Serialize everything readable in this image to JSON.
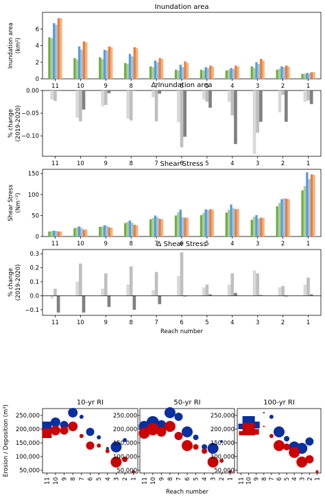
{
  "chart_data": [
    {
      "type": "bar",
      "title": "Inundation area",
      "ylabel_line1": "Inundation area",
      "ylabel_line2": "(km²)",
      "categories": [
        "11",
        "10",
        "9",
        "8",
        "7",
        "6",
        "5",
        "4",
        "3",
        "2",
        "1"
      ],
      "ylim": [
        0,
        8
      ],
      "yticks": [
        0,
        2,
        4,
        6
      ],
      "series": [
        {
          "color": "#70ad47",
          "values": [
            5.0,
            2.5,
            2.6,
            1.9,
            1.5,
            1.1,
            1.1,
            1.0,
            1.5,
            1.1,
            0.6
          ]
        },
        {
          "color": "#a9d08e",
          "values": [
            4.9,
            2.3,
            2.4,
            1.8,
            1.4,
            1.0,
            1.0,
            1.1,
            1.3,
            1.2,
            0.6
          ]
        },
        {
          "color": "#5b9bd5",
          "values": [
            6.7,
            3.9,
            3.5,
            3.0,
            2.2,
            1.7,
            1.4,
            1.3,
            2.0,
            1.5,
            0.7
          ]
        },
        {
          "color": "#9dc3e6",
          "values": [
            6.5,
            3.5,
            3.4,
            2.7,
            2.0,
            1.4,
            1.3,
            1.2,
            1.8,
            1.4,
            0.7
          ]
        },
        {
          "color": "#ed7d31",
          "values": [
            7.3,
            4.5,
            3.9,
            3.8,
            2.5,
            2.1,
            1.6,
            1.6,
            2.4,
            1.6,
            0.8
          ]
        },
        {
          "color": "#f4b183",
          "values": [
            7.3,
            4.4,
            3.8,
            3.7,
            2.4,
            1.9,
            1.5,
            1.5,
            2.2,
            1.5,
            0.8
          ]
        }
      ]
    },
    {
      "type": "bar",
      "title": "Δ Inundation area",
      "ylabel_line1": "% change",
      "ylabel_line2": "(2019-2020)",
      "categories": [
        "11",
        "10",
        "9",
        "8",
        "7",
        "6",
        "5",
        "4",
        "3",
        "2",
        "1"
      ],
      "ylim": [
        -0.145,
        0.0
      ],
      "yticks": [
        0.0,
        -0.05,
        -0.1
      ],
      "ytick_labels": [
        "0.00",
        "−0.05",
        "−0.10"
      ],
      "series": [
        {
          "color": "#d9d9d9",
          "values": [
            -0.02,
            -0.06,
            -0.035,
            -0.062,
            -0.015,
            -0.07,
            -0.02,
            -0.025,
            -0.14,
            -0.048,
            -0.025
          ]
        },
        {
          "color": "#bfbfbf",
          "values": [
            -0.023,
            -0.068,
            -0.032,
            -0.066,
            -0.068,
            -0.125,
            -0.025,
            -0.055,
            -0.093,
            -0.01,
            -0.022
          ]
        },
        {
          "color": "#808080",
          "values": [
            0.0,
            -0.042,
            -0.006,
            0.0,
            -0.007,
            -0.102,
            -0.038,
            -0.118,
            -0.069,
            -0.069,
            -0.03
          ]
        }
      ]
    },
    {
      "type": "bar",
      "title": "Shear Stress",
      "ylabel_line1": "Shear Stress",
      "ylabel_line2": "(Nm⁻²)",
      "categories": [
        "11",
        "10",
        "9",
        "8",
        "7",
        "6",
        "5",
        "4",
        "3",
        "2",
        "1"
      ],
      "ylim": [
        0,
        160
      ],
      "yticks": [
        0,
        50,
        100,
        150
      ],
      "series": [
        {
          "color": "#70ad47",
          "values": [
            12,
            20,
            23,
            32,
            41,
            50,
            51,
            57,
            40,
            72,
            110
          ]
        },
        {
          "color": "#a9d08e",
          "values": [
            13,
            22,
            24,
            35,
            44,
            58,
            56,
            64,
            47,
            80,
            120
          ]
        },
        {
          "color": "#5b9bd5",
          "values": [
            14,
            24,
            27,
            38,
            50,
            64,
            65,
            76,
            51,
            89,
            153
          ]
        },
        {
          "color": "#9dc3e6",
          "values": [
            13,
            20,
            25,
            33,
            46,
            46,
            63,
            67,
            43,
            91,
            137
          ]
        },
        {
          "color": "#ed7d31",
          "values": [
            12,
            16,
            22,
            28,
            42,
            45,
            65,
            65,
            45,
            90,
            148
          ]
        },
        {
          "color": "#f4b183",
          "values": [
            12,
            17,
            21,
            27,
            41,
            45,
            64,
            66,
            44,
            89,
            147
          ]
        }
      ]
    },
    {
      "type": "bar",
      "title": "Δ Shear Stress",
      "ylabel_line1": "% change",
      "ylabel_line2": "(2019-2020)",
      "xlabel": "Reach number",
      "categories": [
        "11",
        "10",
        "9",
        "8",
        "7",
        "6",
        "5",
        "4",
        "3",
        "2",
        "1"
      ],
      "ylim": [
        -0.14,
        0.33
      ],
      "yticks": [
        0.3,
        0.2,
        0.1,
        0.0,
        -0.1
      ],
      "ytick_labels": [
        "0.3",
        "0.2",
        "0.1",
        "0.0",
        "−0.1"
      ],
      "series": [
        {
          "color": "#d9d9d9",
          "values": [
            -0.02,
            0.1,
            0.05,
            0.08,
            0.04,
            0.14,
            0.06,
            0.08,
            0.18,
            0.06,
            0.08
          ]
        },
        {
          "color": "#bfbfbf",
          "values": [
            0.05,
            0.23,
            0.16,
            0.21,
            0.17,
            0.31,
            0.08,
            0.16,
            0.16,
            0.07,
            0.13
          ]
        },
        {
          "color": "#808080",
          "values": [
            -0.12,
            -0.12,
            -0.08,
            -0.1,
            -0.06,
            -0.005,
            0.01,
            0.02,
            0.005,
            -0.005,
            0.01
          ]
        }
      ]
    },
    {
      "type": "scatter",
      "title": "10-yr RI",
      "ylabel": "Erosion / Deposition (m³)",
      "categories": [
        "11",
        "10",
        "9",
        "8",
        "7",
        "6",
        "5",
        "4",
        "3",
        "2",
        "1"
      ],
      "ylim": [
        40000,
        275000
      ],
      "yticks": [
        50000,
        100000,
        150000,
        200000,
        250000
      ],
      "ytick_labels": [
        "50,000",
        "100,000",
        "150,000",
        "200,000",
        "250,000"
      ],
      "series": [
        {
          "color": "#0a2fa0",
          "values": [
            210000,
            225000,
            215000,
            260000,
            245000,
            190000,
            170000,
            130000,
            135000,
            160000,
            45000
          ],
          "sizes": [
            7,
            7,
            6,
            7,
            3,
            6,
            3,
            2,
            8,
            3,
            1
          ],
          "markers": [
            "square",
            "circle",
            "circle",
            "circle",
            "circle",
            "circle",
            "circle",
            "circle",
            "circle",
            "circle",
            "circle"
          ]
        },
        {
          "color": "#cc0000",
          "values": [
            185000,
            195000,
            195000,
            210000,
            175000,
            140000,
            140000,
            120000,
            80000,
            90000,
            45000
          ],
          "sizes": [
            7,
            7,
            6,
            7,
            3,
            6,
            3,
            3,
            8,
            4,
            2
          ],
          "markers": [
            "square",
            "circle",
            "circle",
            "circle",
            "circle",
            "circle",
            "circle",
            "circle",
            "circle",
            "circle",
            "circle"
          ]
        }
      ]
    },
    {
      "type": "scatter",
      "title": "50-yr RI",
      "xlabel": "Reach number",
      "categories": [
        "11",
        "10",
        "9",
        "8",
        "7",
        "6",
        "5",
        "4",
        "3",
        "2",
        "1"
      ],
      "ylim": [
        40000,
        275000
      ],
      "yticks": [
        50000,
        100000,
        150000,
        200000,
        250000
      ],
      "ytick_labels": [
        "50,000",
        "100,000",
        "150,000",
        "200,000",
        "250,000"
      ],
      "series": [
        {
          "color": "#0a2fa0",
          "values": [
            210000,
            225000,
            215000,
            260000,
            245000,
            190000,
            170000,
            135000,
            130000,
            155000,
            45000
          ],
          "sizes": [
            8,
            9,
            7,
            8,
            6,
            8,
            4,
            4,
            8,
            2,
            1
          ],
          "markers": [
            "circle",
            "circle",
            "circle",
            "circle",
            "circle",
            "circle",
            "circle",
            "circle",
            "circle",
            "circle",
            "circle"
          ]
        },
        {
          "color": "#cc0000",
          "values": [
            185000,
            200000,
            190000,
            210000,
            175000,
            140000,
            135000,
            120000,
            80000,
            85000,
            45000
          ],
          "sizes": [
            8,
            9,
            7,
            8,
            6,
            8,
            4,
            4,
            8,
            3,
            2
          ],
          "markers": [
            "circle",
            "circle",
            "circle",
            "circle",
            "circle",
            "circle",
            "circle",
            "circle",
            "circle",
            "circle",
            "circle"
          ]
        }
      ]
    },
    {
      "type": "scatter",
      "title": "100-yr RI",
      "categories": [
        "11",
        "10",
        "9",
        "8",
        "7",
        "6",
        "5",
        "4",
        "3",
        "2",
        "1"
      ],
      "ylim": [
        40000,
        275000
      ],
      "yticks": [
        50000,
        100000,
        150000,
        200000,
        250000
      ],
      "ytick_labels": [
        "50,000",
        "100,000",
        "150,000",
        "200,000",
        "250,000"
      ],
      "series": [
        {
          "color": "#0a2fa0",
          "values": [
            210000,
            225000,
            215000,
            260000,
            245000,
            190000,
            165000,
            135000,
            130000,
            155000,
            45000
          ],
          "sizes": [
            4,
            9,
            5,
            1,
            3,
            8,
            4,
            8,
            8,
            6,
            2
          ],
          "markers": [
            "square",
            "square",
            "square",
            "square",
            "circle",
            "circle",
            "circle",
            "circle",
            "circle",
            "circle",
            "circle"
          ]
        },
        {
          "color": "#cc0000",
          "values": [
            185000,
            200000,
            190000,
            210000,
            175000,
            140000,
            135000,
            115000,
            80000,
            90000,
            45000
          ],
          "sizes": [
            3,
            9,
            4,
            1,
            3,
            8,
            5,
            8,
            8,
            6,
            2
          ],
          "markers": [
            "square",
            "square",
            "square",
            "square",
            "circle",
            "circle",
            "circle",
            "circle",
            "circle",
            "circle",
            "circle"
          ]
        }
      ]
    }
  ]
}
